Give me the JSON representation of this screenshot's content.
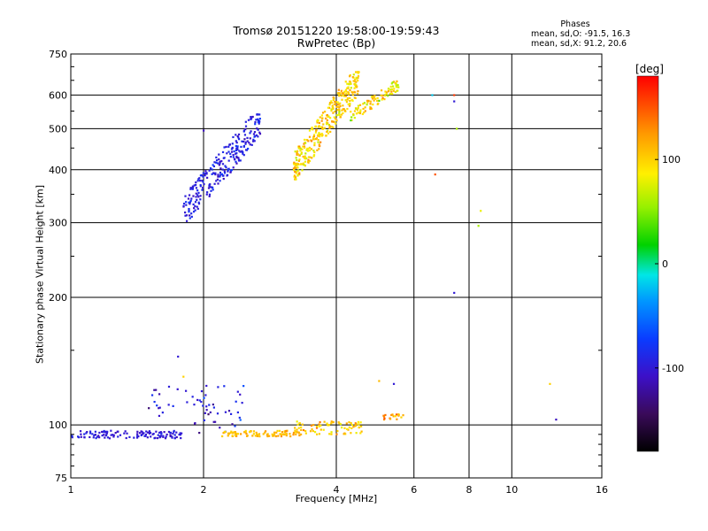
{
  "chart_data": {
    "type": "scatter",
    "title": "Tromsø 20151220 19:58:00-19:59:43",
    "subtitle": "RwPretec (Bp)",
    "xlabel": "Frequency [MHz]",
    "ylabel": "Stationary phase Virtual Height [km]",
    "x_scale": "log2",
    "y_scale": "log",
    "xlim": [
      1,
      16
    ],
    "ylim": [
      75,
      750
    ],
    "x_ticks": [
      1,
      2,
      4,
      6,
      8,
      10,
      16
    ],
    "x_tick_labels": [
      "1",
      "2",
      "4",
      "6",
      "8",
      "10",
      "16"
    ],
    "y_ticks": [
      75,
      100,
      200,
      300,
      400,
      500,
      600,
      750
    ],
    "y_tick_labels": [
      "75",
      "100",
      "200",
      "300",
      "400",
      "500",
      "600",
      "750"
    ],
    "grid": true,
    "colorbar": {
      "unit": "[deg]",
      "range": [
        -180,
        180
      ],
      "ticks": [
        100,
        0,
        -100
      ],
      "tick_labels": [
        "100",
        "0",
        "-100"
      ]
    },
    "legend": {
      "title": "Phases",
      "line1": "mean, sd,O: -91.5, 16.3",
      "line2": "mean, sd,X:  91.2, 20.6"
    },
    "clusters": [
      {
        "name": "",
        "freq_range": [
          1.0,
          1.8
        ],
        "height_range": [
          93,
          97
        ],
        "phase_mean": -100,
        "phase_sd": 10,
        "points": 120
      },
      {
        "name": "",
        "freq_range": [
          1.5,
          2.5
        ],
        "height_range": [
          95,
          125
        ],
        "phase_mean": -95,
        "phase_sd": 25,
        "points": 60
      },
      {
        "name": "",
        "freq_range": [
          2.2,
          3.3
        ],
        "height_range": [
          94,
          97
        ],
        "phase_mean": 110,
        "phase_sd": 15,
        "points": 90
      },
      {
        "name": "",
        "freq_range": [
          3.2,
          4.6
        ],
        "height_range": [
          95,
          102
        ],
        "phase_mean": 105,
        "phase_sd": 25,
        "points": 80
      },
      {
        "name": "",
        "freq_range": [
          5.1,
          5.7
        ],
        "height_range": [
          103,
          106
        ],
        "phase_mean": 120,
        "phase_sd": 20,
        "points": 18
      },
      {
        "name": "",
        "freq_range": [
          1.8,
          2.7
        ],
        "height_range": [
          300,
          540
        ],
        "phase_mean": -95,
        "phase_sd": 15,
        "points": 260
      },
      {
        "name": "",
        "freq_range": [
          3.2,
          4.5
        ],
        "height_range": [
          380,
          680
        ],
        "phase_mean": 100,
        "phase_sd": 25,
        "points": 320
      },
      {
        "name": "",
        "freq_range": [
          4.3,
          5.6
        ],
        "height_range": [
          520,
          650
        ],
        "phase_mean": 90,
        "phase_sd": 30,
        "points": 90
      }
    ],
    "outliers": [
      {
        "x": 6.7,
        "y": 390,
        "phase": 150
      },
      {
        "x": 7.4,
        "y": 600,
        "phase": 160
      },
      {
        "x": 7.4,
        "y": 580,
        "phase": -100
      },
      {
        "x": 7.5,
        "y": 500,
        "phase": 60
      },
      {
        "x": 7.4,
        "y": 205,
        "phase": -100
      },
      {
        "x": 8.5,
        "y": 320,
        "phase": 80
      },
      {
        "x": 8.4,
        "y": 295,
        "phase": 60
      },
      {
        "x": 12.2,
        "y": 125,
        "phase": 100
      },
      {
        "x": 12.6,
        "y": 103,
        "phase": -110
      },
      {
        "x": 6.6,
        "y": 600,
        "phase": -20
      },
      {
        "x": 5.4,
        "y": 125,
        "phase": -100
      },
      {
        "x": 5.0,
        "y": 127,
        "phase": 110
      },
      {
        "x": 2.0,
        "y": 495,
        "phase": -110
      },
      {
        "x": 1.75,
        "y": 145,
        "phase": -100
      },
      {
        "x": 1.8,
        "y": 130,
        "phase": 100
      }
    ]
  }
}
